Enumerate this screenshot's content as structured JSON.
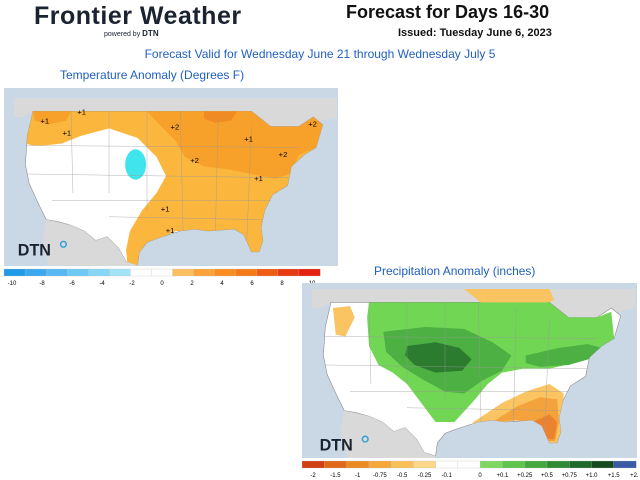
{
  "brand": {
    "name": "Frontier Weather",
    "powered_by": "powered by",
    "powered_brand": "DTN"
  },
  "header": {
    "title": "Forecast for Days 16-30",
    "issued": "Issued: Tuesday June 6, 2023"
  },
  "valid_text": "Forecast Valid for Wednesday June 21 through Wednesday July 5",
  "temperature": {
    "title": "Temperature Anomaly (Degrees F)",
    "logo": "DTN",
    "contour_labels": [
      {
        "text": "+1",
        "lon": -123.5,
        "lat": 48.0
      },
      {
        "text": "+1",
        "lon": -116.0,
        "lat": 49.5
      },
      {
        "text": "+1",
        "lon": -119.0,
        "lat": 46.0
      },
      {
        "text": "+2",
        "lon": -97.0,
        "lat": 47.0
      },
      {
        "text": "+1",
        "lon": -82.0,
        "lat": 45.0
      },
      {
        "text": "+2",
        "lon": -69.0,
        "lat": 47.5
      },
      {
        "text": "+2",
        "lon": -93.0,
        "lat": 41.5
      },
      {
        "text": "+2",
        "lon": -75.0,
        "lat": 42.5
      },
      {
        "text": "+1",
        "lon": -80.0,
        "lat": 38.5
      },
      {
        "text": "+1",
        "lon": -99.0,
        "lat": 33.5
      },
      {
        "text": "+1",
        "lon": -98.0,
        "lat": 30.0
      }
    ],
    "legend": {
      "ticks": [
        "-10",
        "-8",
        "-6",
        "-4",
        "-2",
        "0",
        "2",
        "4",
        "6",
        "8",
        "10"
      ],
      "colors": [
        "#1f9ae8",
        "#3aa8ee",
        "#55b8f2",
        "#6ec8f4",
        "#88d6f6",
        "#a3e4f8",
        "#ffffff",
        "#ffffff",
        "#fdc060",
        "#fba33a",
        "#f98d20",
        "#f47a18",
        "#ef5a14",
        "#e83a12",
        "#e42010"
      ]
    },
    "colors": {
      "c1": "#fbb63e",
      "c2": "#f7a12a",
      "c3": "#f08a22",
      "cold": "#3fe4ec"
    }
  },
  "precipitation": {
    "title": "Precipitation Anomaly (inches)",
    "logo": "DTN",
    "legend": {
      "ticks": [
        "-2",
        "-1.5",
        "-1",
        "-0.75",
        "-0.5",
        "-0.25",
        "-0.1",
        "0",
        "+0.1",
        "+0.25",
        "+0.5",
        "+0.75",
        "+1.0",
        "+1.5",
        "+2.0"
      ],
      "colors": [
        "#d04010",
        "#e06818",
        "#ec8a22",
        "#f5a838",
        "#f9c05a",
        "#fcd88a",
        "#ffffff",
        "#ffffff",
        "#7ed860",
        "#5ec44e",
        "#44a83e",
        "#2f8a34",
        "#1f6a28",
        "#144a1e",
        "#3a5aa8"
      ]
    },
    "colors": {
      "d1": "#fbc462",
      "d2": "#f4a33c",
      "d3": "#ec8230",
      "w1": "#72d655",
      "w2": "#4cb042",
      "w3": "#2c7c30"
    }
  }
}
